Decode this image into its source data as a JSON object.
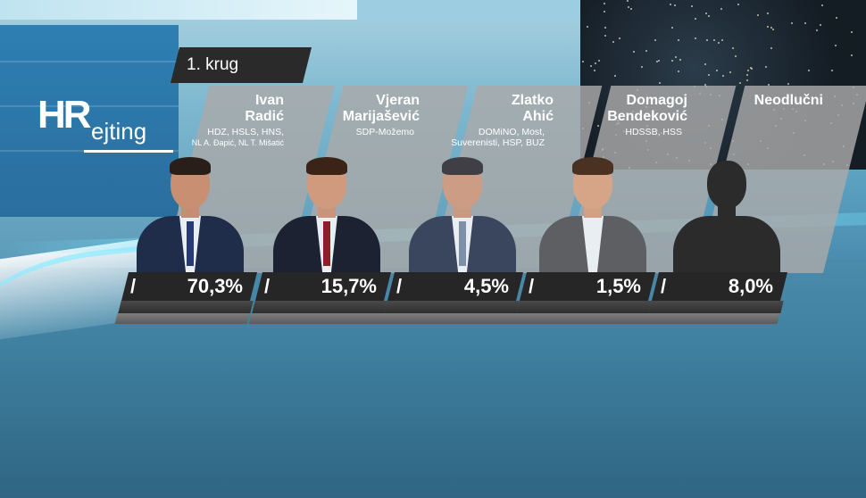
{
  "show": {
    "logo_hr": "HR",
    "logo_text": "ejting"
  },
  "round_label": "1. krug",
  "candidates": [
    {
      "name_line1": "Ivan",
      "name_line2": "Radić",
      "party_line1": "HDZ, HSLS, HNS,",
      "party_line2": "NL A. Đapić, NL T. Mišatić",
      "percent": "70,3%",
      "value": 70.3,
      "slash": "/"
    },
    {
      "name_line1": "Vjeran",
      "name_line2": "Marijašević",
      "party_line1": "SDP-Možemo",
      "party_line2": "",
      "percent": "15,7%",
      "value": 15.7,
      "slash": "/"
    },
    {
      "name_line1": "Zlatko",
      "name_line2": "Ahić",
      "party_line1": "DOMiNO, Most,",
      "party_line2": "Suverenisti, HSP, BUZ",
      "percent": "4,5%",
      "value": 4.5,
      "slash": "/"
    },
    {
      "name_line1": "Domagoj",
      "name_line2": "Bendeković",
      "party_line1": "HDSSB, HSS",
      "party_line2": "",
      "percent": "1,5%",
      "value": 1.5,
      "slash": "/"
    },
    {
      "name_line1": "Neodlučni",
      "name_line2": "",
      "party_line1": "",
      "party_line2": "",
      "percent": "8,0%",
      "value": 8.0,
      "slash": "/"
    }
  ],
  "colors": {
    "card": "#aaaaaa",
    "bar": "#262626",
    "accent": "#7fe6ff"
  }
}
